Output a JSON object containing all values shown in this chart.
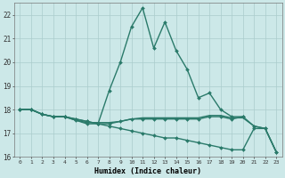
{
  "xlabel": "Humidex (Indice chaleur)",
  "xlim": [
    -0.5,
    23.5
  ],
  "ylim": [
    16,
    22.5
  ],
  "yticks": [
    16,
    17,
    18,
    19,
    20,
    21,
    22
  ],
  "xticks": [
    0,
    1,
    2,
    3,
    4,
    5,
    6,
    7,
    8,
    9,
    10,
    11,
    12,
    13,
    14,
    15,
    16,
    17,
    18,
    19,
    20,
    21,
    22,
    23
  ],
  "bg_color": "#cce8e8",
  "grid_color": "#aacccc",
  "line_color": "#2a7a6a",
  "lines": [
    {
      "x": [
        0,
        1,
        2,
        3,
        4,
        5,
        6,
        7,
        8,
        9,
        10,
        11,
        12,
        13,
        14,
        15,
        16,
        17,
        18,
        19,
        20
      ],
      "y": [
        18.0,
        18.0,
        17.8,
        17.7,
        17.7,
        17.6,
        17.5,
        17.4,
        18.8,
        20.0,
        21.5,
        22.3,
        20.6,
        21.7,
        20.5,
        19.7,
        18.5,
        18.7,
        18.0,
        17.7,
        17.7
      ],
      "marker": true,
      "lw": 1.0
    },
    {
      "x": [
        0,
        1,
        2,
        3,
        4,
        5,
        6,
        7,
        8,
        9,
        10,
        11,
        12,
        13,
        14,
        15,
        16,
        17,
        18,
        19,
        20,
        21,
        22,
        23
      ],
      "y": [
        18.0,
        18.0,
        17.8,
        17.7,
        17.7,
        17.6,
        17.5,
        17.4,
        17.3,
        17.2,
        17.1,
        17.0,
        16.9,
        16.8,
        16.8,
        16.7,
        16.6,
        16.5,
        16.4,
        16.3,
        16.3,
        17.2,
        17.2,
        16.2
      ],
      "marker": true,
      "lw": 1.0
    },
    {
      "x": [
        0,
        1,
        2,
        3,
        4,
        5,
        6,
        7,
        8,
        9,
        10,
        11,
        12,
        13,
        14,
        15,
        16,
        17,
        18,
        19,
        20,
        21,
        22,
        23
      ],
      "y": [
        18.0,
        18.0,
        17.8,
        17.7,
        17.7,
        17.55,
        17.4,
        17.4,
        17.4,
        17.5,
        17.6,
        17.6,
        17.6,
        17.6,
        17.6,
        17.6,
        17.6,
        17.7,
        17.7,
        17.6,
        17.7,
        17.3,
        17.2,
        16.2
      ],
      "marker": true,
      "lw": 1.0
    },
    {
      "x": [
        0,
        1,
        2,
        3,
        4,
        5,
        6,
        7,
        8,
        9,
        10,
        11,
        12,
        13,
        14,
        15,
        16,
        17,
        18,
        19,
        20,
        21,
        22,
        23
      ],
      "y": [
        18.0,
        18.0,
        17.8,
        17.7,
        17.7,
        17.55,
        17.45,
        17.45,
        17.45,
        17.5,
        17.6,
        17.65,
        17.65,
        17.65,
        17.65,
        17.65,
        17.65,
        17.75,
        17.75,
        17.65,
        17.65,
        17.3,
        17.2,
        16.2
      ],
      "marker": false,
      "lw": 1.0
    }
  ],
  "figsize": [
    3.2,
    2.0
  ],
  "dpi": 100
}
